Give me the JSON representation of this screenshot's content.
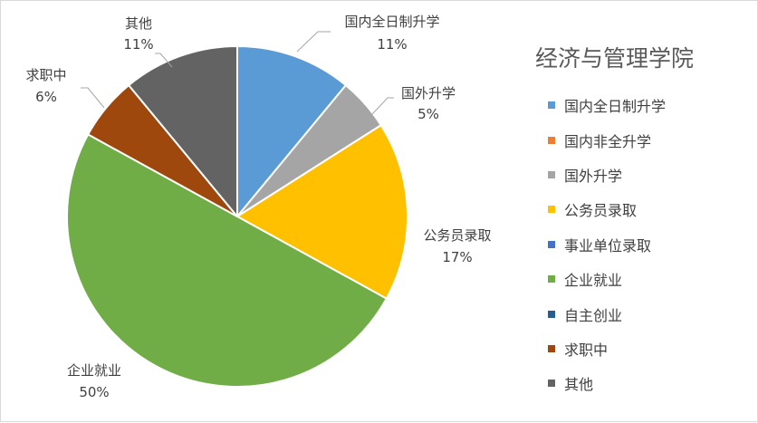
{
  "chart_data": {
    "type": "pie",
    "title": "经济与管理学院",
    "legend_position": "right",
    "categories": [
      "国内全日制升学",
      "国内非全升学",
      "国外升学",
      "公务员录取",
      "事业单位录取",
      "企业就业",
      "自主创业",
      "求职中",
      "其他"
    ],
    "values": [
      11,
      0,
      5,
      17,
      0,
      50,
      0,
      6,
      11
    ],
    "colors": [
      "#5b9bd5",
      "#ed7d31",
      "#a5a5a5",
      "#ffc000",
      "#4472c4",
      "#70ad47",
      "#255e91",
      "#9e480e",
      "#636363"
    ],
    "data_labels": [
      {
        "name": "国内全日制升学",
        "pct": "11%"
      },
      {
        "name": "国外升学",
        "pct": "5%"
      },
      {
        "name": "公务员录取",
        "pct": "17%"
      },
      {
        "name": "企业就业",
        "pct": "50%"
      },
      {
        "name": "求职中",
        "pct": "6%"
      },
      {
        "name": "其他",
        "pct": "11%"
      }
    ]
  }
}
